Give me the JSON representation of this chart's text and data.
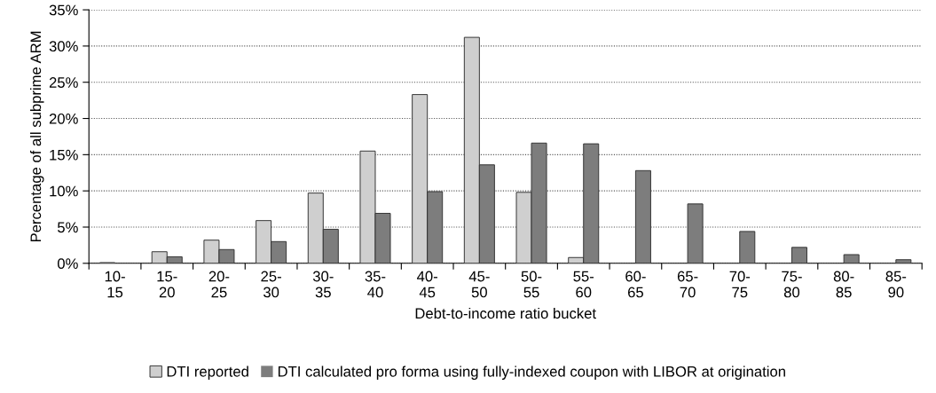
{
  "chart_data": {
    "type": "bar",
    "xlabel": "Debt-to-income ratio bucket",
    "ylabel": "Percentage of all subprime ARM",
    "categories": [
      "10-\n15",
      "15-\n20",
      "20-\n25",
      "25-\n30",
      "30-\n35",
      "35-\n40",
      "40-\n45",
      "45-\n50",
      "50-\n55",
      "55-\n60",
      "60-\n65",
      "65-\n70",
      "70-\n75",
      "75-\n80",
      "80-\n85",
      "85-\n90"
    ],
    "series": [
      {
        "name": "DTI reported",
        "color": "#cfcfcf",
        "values": [
          0.1,
          1.6,
          3.2,
          5.9,
          9.7,
          15.5,
          23.3,
          31.2,
          9.8,
          0.8,
          0,
          0,
          0,
          0,
          0,
          0
        ]
      },
      {
        "name": "DTI calculated pro forma using fully-indexed coupon with LIBOR at origination",
        "color": "#7d7d7d",
        "values": [
          0,
          0.9,
          1.9,
          3.0,
          4.7,
          6.9,
          9.9,
          13.6,
          16.6,
          16.5,
          12.8,
          8.2,
          4.4,
          2.2,
          1.2,
          0.5
        ]
      }
    ],
    "ylim": [
      0,
      35
    ],
    "yticks": [
      {
        "value": 0,
        "label": "0%"
      },
      {
        "value": 5,
        "label": "5%"
      },
      {
        "value": 10,
        "label": "10%"
      },
      {
        "value": 15,
        "label": "15%"
      },
      {
        "value": 20,
        "label": "20%"
      },
      {
        "value": 25,
        "label": "25%"
      },
      {
        "value": 30,
        "label": "30%"
      },
      {
        "value": 35,
        "label": "35%"
      }
    ],
    "grid": "y",
    "legend": "bottom"
  }
}
